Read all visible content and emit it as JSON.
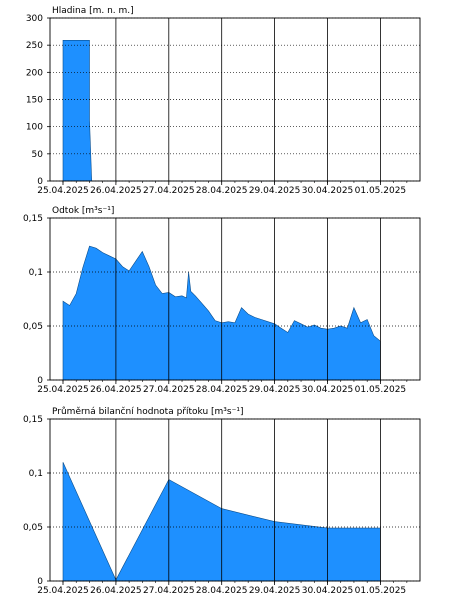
{
  "chart_data": [
    {
      "type": "area",
      "title": "Hladina [m. n. m.]",
      "ylim": [
        0,
        300
      ],
      "yticks": [
        0,
        50,
        100,
        150,
        200,
        250,
        300
      ],
      "ytick_labels": [
        "0",
        "50",
        "100",
        "150",
        "200",
        "250",
        "300"
      ],
      "xlim": [
        "2025-04-25T00:00",
        "2025-05-01T18:00"
      ],
      "xtick_labels": [
        "25.04.2025",
        "26.04.2025",
        "27.04.2025",
        "28.04.2025",
        "29.04.2025",
        "30.04.2025",
        "01.05.2025"
      ],
      "grid": true,
      "fill_color": "#1e90ff",
      "series": [
        {
          "x": [
            "2025-04-25T00:00",
            "2025-04-25T12:00",
            "2025-04-25T12:00",
            "2025-04-25T13:00",
            "2025-05-01T00:00"
          ],
          "values": [
            259,
            259,
            112,
            0,
            0
          ]
        }
      ]
    },
    {
      "type": "area",
      "title": "Odtok [m³s⁻¹]",
      "ylim": [
        0,
        0.15
      ],
      "yticks": [
        0,
        0.05,
        0.1,
        0.15
      ],
      "ytick_labels": [
        "0",
        "0,05",
        "0,1",
        "0,15"
      ],
      "xlim": [
        "2025-04-25T00:00",
        "2025-05-01T18:00"
      ],
      "xtick_labels": [
        "25.04.2025",
        "26.04.2025",
        "27.04.2025",
        "28.04.2025",
        "29.04.2025",
        "30.04.2025",
        "01.05.2025"
      ],
      "grid": true,
      "fill_color": "#1e90ff",
      "series": [
        {
          "x": [
            "2025-04-25T00:00",
            "2025-04-25T03:00",
            "2025-04-25T06:00",
            "2025-04-25T09:00",
            "2025-04-25T12:00",
            "2025-04-25T15:00",
            "2025-04-25T18:00",
            "2025-04-25T21:00",
            "2025-04-26T00:00",
            "2025-04-26T03:00",
            "2025-04-26T06:00",
            "2025-04-26T09:00",
            "2025-04-26T12:00",
            "2025-04-26T15:00",
            "2025-04-26T18:00",
            "2025-04-26T21:00",
            "2025-04-27T00:00",
            "2025-04-27T03:00",
            "2025-04-27T06:00",
            "2025-04-27T08:00",
            "2025-04-27T09:00",
            "2025-04-27T10:00",
            "2025-04-27T12:00",
            "2025-04-27T15:00",
            "2025-04-27T18:00",
            "2025-04-27T21:00",
            "2025-04-28T00:00",
            "2025-04-28T03:00",
            "2025-04-28T06:00",
            "2025-04-28T09:00",
            "2025-04-28T12:00",
            "2025-04-28T15:00",
            "2025-04-28T18:00",
            "2025-04-28T21:00",
            "2025-04-29T00:00",
            "2025-04-29T03:00",
            "2025-04-29T06:00",
            "2025-04-29T09:00",
            "2025-04-29T12:00",
            "2025-04-29T15:00",
            "2025-04-29T18:00",
            "2025-04-29T21:00",
            "2025-04-30T00:00",
            "2025-04-30T03:00",
            "2025-04-30T06:00",
            "2025-04-30T09:00",
            "2025-04-30T12:00",
            "2025-04-30T15:00",
            "2025-04-30T18:00",
            "2025-04-30T21:00",
            "2025-05-01T00:00"
          ],
          "values": [
            0.073,
            0.069,
            0.08,
            0.104,
            0.124,
            0.122,
            0.118,
            0.115,
            0.112,
            0.105,
            0.101,
            0.11,
            0.119,
            0.105,
            0.088,
            0.08,
            0.081,
            0.077,
            0.078,
            0.076,
            0.1,
            0.082,
            0.078,
            0.071,
            0.064,
            0.055,
            0.053,
            0.054,
            0.053,
            0.067,
            0.061,
            0.058,
            0.056,
            0.054,
            0.052,
            0.048,
            0.044,
            0.055,
            0.052,
            0.049,
            0.051,
            0.048,
            0.047,
            0.048,
            0.05,
            0.048,
            0.067,
            0.053,
            0.056,
            0.041,
            0.036
          ]
        }
      ]
    },
    {
      "type": "area",
      "title": "Průměrná bilanční hodnota přítoku   [m³s⁻¹]",
      "ylim": [
        0,
        0.15
      ],
      "yticks": [
        0,
        0.05,
        0.1,
        0.15
      ],
      "ytick_labels": [
        "0",
        "0,05",
        "0,1",
        "0,15"
      ],
      "xlim": [
        "2025-04-25T00:00",
        "2025-05-01T18:00"
      ],
      "xtick_labels": [
        "25.04.2025",
        "26.04.2025",
        "27.04.2025",
        "28.04.2025",
        "29.04.2025",
        "30.04.2025",
        "01.05.2025"
      ],
      "grid": true,
      "fill_color": "#1e90ff",
      "series": [
        {
          "x": [
            "2025-04-25T00:00",
            "2025-04-26T00:00",
            "2025-04-27T00:00",
            "2025-04-28T00:00",
            "2025-04-29T00:00",
            "2025-04-30T00:00",
            "2025-05-01T00:00"
          ],
          "values": [
            0.11,
            0.001,
            0.094,
            0.067,
            0.055,
            0.049,
            0.049
          ]
        }
      ]
    }
  ]
}
